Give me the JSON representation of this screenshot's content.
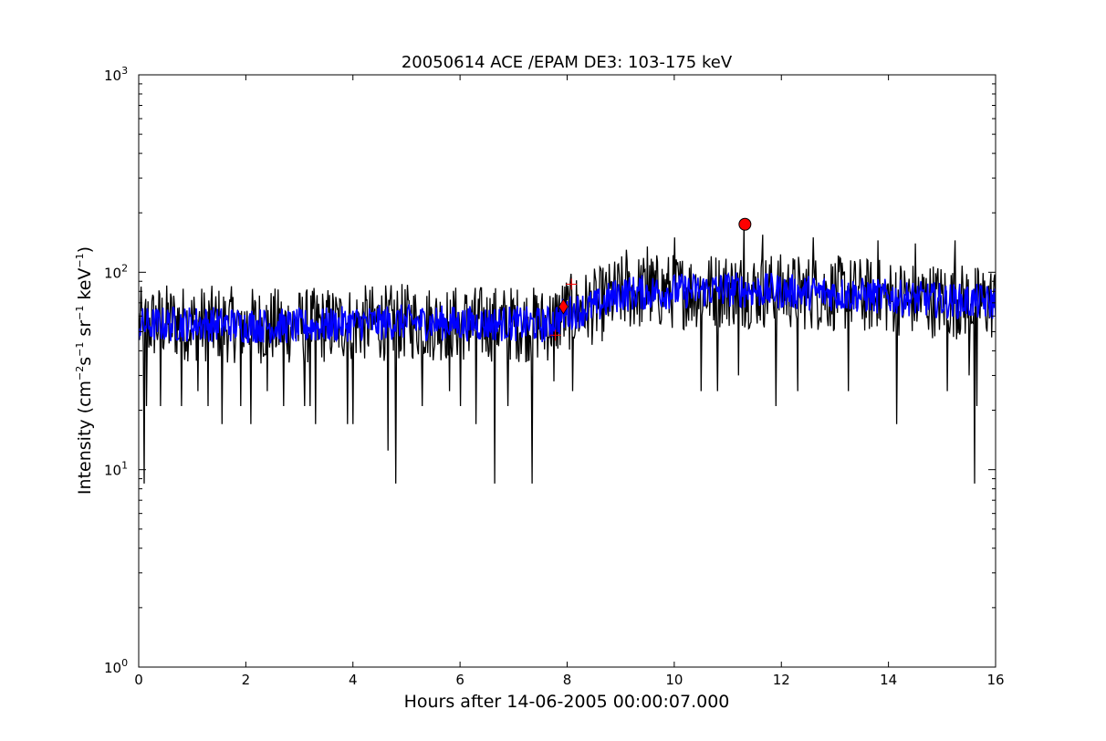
{
  "chart_data": {
    "type": "line",
    "title": "20050614 ACE /EPAM DE3: 103-175 keV",
    "xlabel": "Hours after 14-06-2005 00:00:07.000",
    "ylabel": {
      "prefix": "Intensity (cm",
      "parts": [
        {
          "text": "−2",
          "sup": true
        },
        {
          "text": "s",
          "sup": false
        },
        {
          "text": "−1",
          "sup": true
        },
        {
          "text": " sr",
          "sup": false
        },
        {
          "text": "−1",
          "sup": true
        },
        {
          "text": " keV",
          "sup": false
        },
        {
          "text": "−1",
          "sup": true
        },
        {
          "text": ")",
          "sup": false
        }
      ]
    },
    "x_range": [
      0,
      16
    ],
    "y_range": [
      1,
      1000
    ],
    "y_scale": "log",
    "grid": false,
    "x_ticks": [
      {
        "value": 0,
        "label": "0"
      },
      {
        "value": 2,
        "label": "2"
      },
      {
        "value": 4,
        "label": "4"
      },
      {
        "value": 6,
        "label": "6"
      },
      {
        "value": 8,
        "label": "8"
      },
      {
        "value": 10,
        "label": "10"
      },
      {
        "value": 12,
        "label": "12"
      },
      {
        "value": 14,
        "label": "14"
      },
      {
        "value": 16,
        "label": "16"
      }
    ],
    "y_ticks": [
      {
        "value": 1,
        "base": "10",
        "exp": "0"
      },
      {
        "value": 10,
        "base": "10",
        "exp": "1"
      },
      {
        "value": 100,
        "base": "10",
        "exp": "2"
      },
      {
        "value": 1000,
        "base": "10",
        "exp": "3"
      }
    ],
    "series": [
      {
        "style": "raw",
        "color": "#000000",
        "profile": [
          [
            0,
            54
          ],
          [
            0.5,
            56
          ],
          [
            1,
            55
          ],
          [
            2,
            54
          ],
          [
            3,
            53
          ],
          [
            4,
            55
          ],
          [
            5,
            56
          ],
          [
            6,
            55
          ],
          [
            7,
            55
          ],
          [
            7.6,
            54
          ],
          [
            8.0,
            62
          ],
          [
            8.6,
            68
          ],
          [
            9.0,
            78
          ],
          [
            9.5,
            80
          ],
          [
            10,
            80
          ],
          [
            11,
            82
          ],
          [
            12,
            80
          ],
          [
            13,
            78
          ],
          [
            14,
            75
          ],
          [
            15,
            72
          ],
          [
            16,
            70
          ]
        ],
        "dips": [
          [
            0.1,
            8.5
          ],
          [
            0.15,
            21
          ],
          [
            0.4,
            21
          ],
          [
            0.8,
            21
          ],
          [
            1.1,
            25
          ],
          [
            1.3,
            21
          ],
          [
            1.55,
            17
          ],
          [
            1.9,
            21
          ],
          [
            2.1,
            17
          ],
          [
            2.4,
            25
          ],
          [
            2.7,
            21
          ],
          [
            3.1,
            21
          ],
          [
            3.2,
            21
          ],
          [
            3.3,
            17
          ],
          [
            3.9,
            17
          ],
          [
            4.0,
            17
          ],
          [
            4.65,
            12.5
          ],
          [
            4.8,
            8.5
          ],
          [
            5.3,
            21
          ],
          [
            5.8,
            25
          ],
          [
            6.0,
            21
          ],
          [
            6.3,
            17
          ],
          [
            6.65,
            8.5
          ],
          [
            6.9,
            21
          ],
          [
            7.35,
            8.5
          ],
          [
            7.75,
            28
          ],
          [
            8.1,
            25
          ],
          [
            10.0,
            25
          ],
          [
            10.5,
            25
          ],
          [
            10.8,
            25
          ],
          [
            11.2,
            30
          ],
          [
            11.9,
            21
          ],
          [
            12.3,
            25
          ],
          [
            12.6,
            21
          ],
          [
            13.25,
            25
          ],
          [
            13.8,
            30
          ],
          [
            14.15,
            17
          ],
          [
            14.5,
            17
          ],
          [
            15.1,
            25
          ],
          [
            15.5,
            30
          ],
          [
            15.6,
            8.5
          ],
          [
            15.65,
            21
          ]
        ],
        "spikes": [
          [
            11.3,
            175
          ],
          [
            11.65,
            155
          ],
          [
            12.6,
            150
          ],
          [
            10.0,
            150
          ],
          [
            15.25,
            145
          ],
          [
            13.8,
            145
          ],
          [
            14.5,
            140
          ],
          [
            9.5,
            135
          ],
          [
            9.1,
            130
          ]
        ]
      },
      {
        "style": "smoothed",
        "color": "#0000ff",
        "profile": [
          [
            0,
            54
          ],
          [
            1,
            55
          ],
          [
            2,
            54
          ],
          [
            3,
            53
          ],
          [
            4,
            55
          ],
          [
            5,
            56
          ],
          [
            6,
            55
          ],
          [
            7,
            55
          ],
          [
            7.6,
            54
          ],
          [
            8.0,
            62
          ],
          [
            8.6,
            68
          ],
          [
            9.0,
            78
          ],
          [
            10,
            80
          ],
          [
            11,
            82
          ],
          [
            12,
            80
          ],
          [
            13,
            78
          ],
          [
            14,
            75
          ],
          [
            15,
            72
          ],
          [
            16,
            70
          ]
        ]
      }
    ],
    "markers": [
      {
        "shape": "circle",
        "x": 11.32,
        "y": 175,
        "color": "#ff0000"
      },
      {
        "shape": "diamond",
        "x": 7.93,
        "y": 67,
        "color": "#ff0000"
      },
      {
        "shape": "plus",
        "x": 7.78,
        "y": 48,
        "color": "#ff0000"
      },
      {
        "shape": "plus",
        "x": 8.08,
        "y": 87,
        "color": "#ff0000"
      }
    ]
  }
}
